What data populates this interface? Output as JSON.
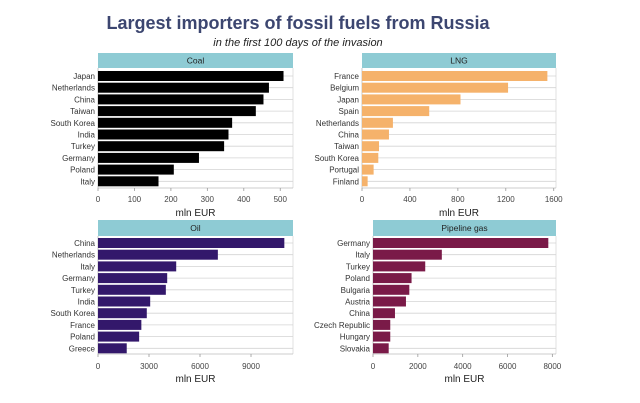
{
  "chart_data": {
    "title": "Largest importers of fossil fuels from Russia",
    "subtitle": "in the first 100 days of the invasion",
    "panels": [
      {
        "type": "bar",
        "orientation": "horizontal",
        "title": "Coal",
        "xlabel": "mln EUR",
        "color": "#000000",
        "categories": [
          "Japan",
          "Netherlands",
          "China",
          "Taiwan",
          "South Korea",
          "India",
          "Turkey",
          "Germany",
          "Poland",
          "Italy"
        ],
        "values": [
          509,
          469,
          454,
          433,
          368,
          358,
          346,
          277,
          208,
          166
        ],
        "xlim": [
          0,
          535
        ],
        "xticks": [
          0,
          100,
          200,
          300,
          400,
          500
        ]
      },
      {
        "type": "bar",
        "orientation": "horizontal",
        "title": "LNG",
        "xlabel": "mln EUR",
        "color": "#f5b26b",
        "categories": [
          "France",
          "Belgium",
          "Japan",
          "Spain",
          "Netherlands",
          "China",
          "Taiwan",
          "South Korea",
          "Portugal",
          "Finland"
        ],
        "values": [
          1547,
          1219,
          822,
          561,
          258,
          225,
          142,
          136,
          97,
          47
        ],
        "xlim": [
          0,
          1619
        ],
        "xticks": [
          0,
          400,
          800,
          1200,
          1600
        ]
      },
      {
        "type": "bar",
        "orientation": "horizontal",
        "title": "Oil",
        "xlabel": "mln EUR",
        "color": "#33186b",
        "categories": [
          "China",
          "Netherlands",
          "Italy",
          "Germany",
          "Turkey",
          "India",
          "South Korea",
          "France",
          "Poland",
          "Greece"
        ],
        "values": [
          10960,
          7050,
          4600,
          4070,
          3990,
          3070,
          2870,
          2550,
          2420,
          1690
        ],
        "xlim": [
          0,
          11470
        ],
        "xticks": [
          0,
          3000,
          6000,
          9000
        ]
      },
      {
        "type": "bar",
        "orientation": "horizontal",
        "title": "Pipeline gas",
        "xlabel": "mln EUR",
        "color": "#7a1a48",
        "categories": [
          "Germany",
          "Italy",
          "Turkey",
          "Poland",
          "Bulgaria",
          "Austria",
          "China",
          "Czech Republic",
          "Hungary",
          "Slovakia"
        ],
        "values": [
          7820,
          3070,
          2330,
          1720,
          1620,
          1470,
          980,
          770,
          770,
          700
        ],
        "xlim": [
          0,
          8163
        ],
        "xticks": [
          0,
          2000,
          4000,
          6000,
          8000
        ]
      }
    ],
    "strip_color": "#8ecbd4",
    "grid": true
  }
}
